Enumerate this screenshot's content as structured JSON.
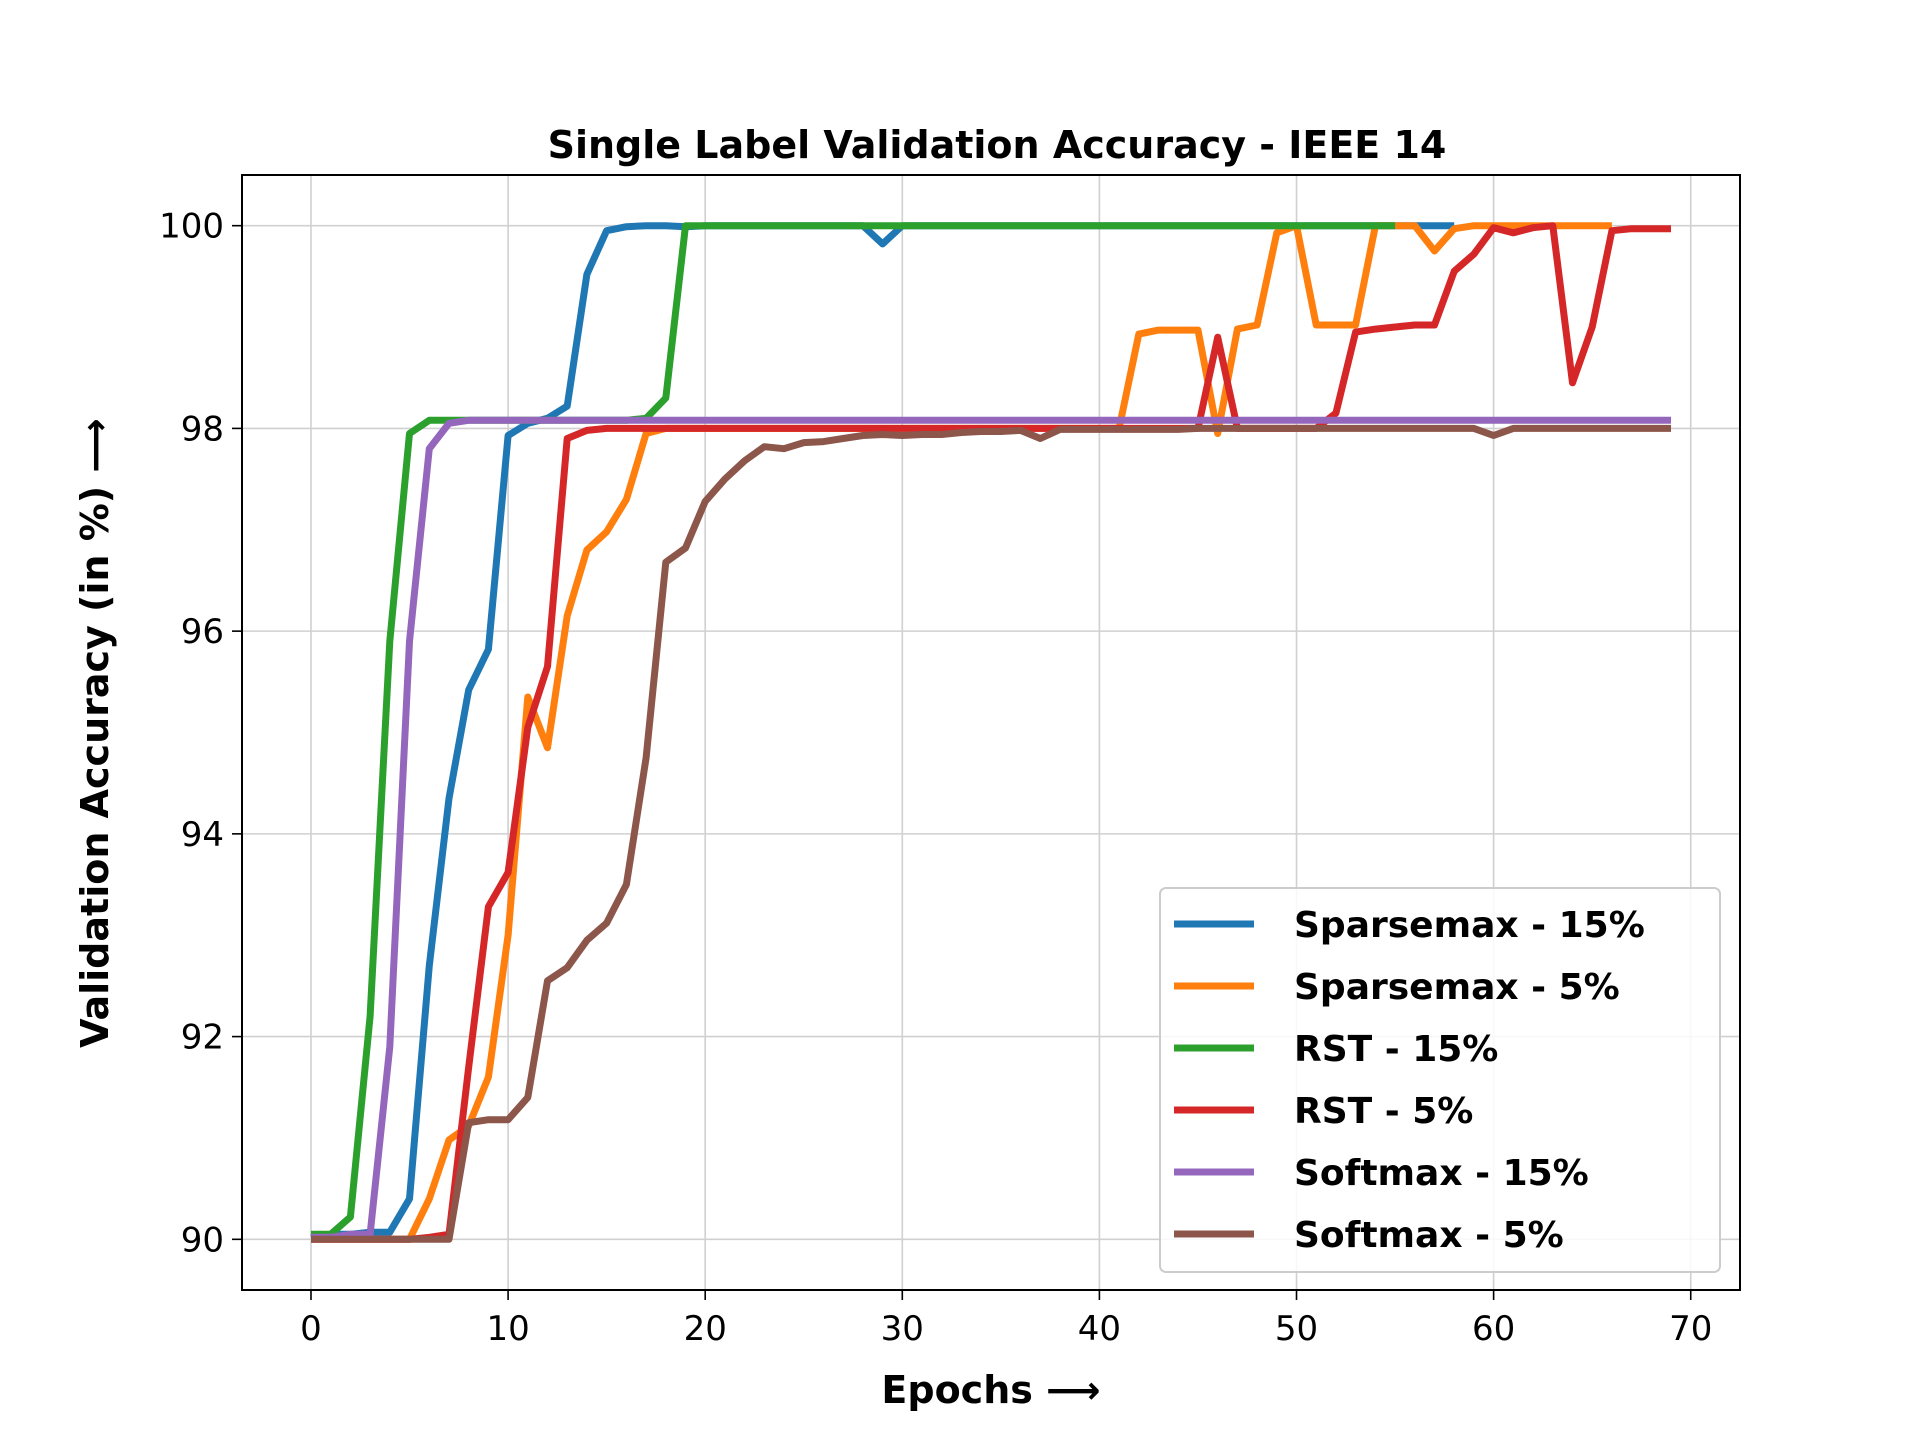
{
  "chart_data": {
    "type": "line",
    "title": "Single Label Validation Accuracy - IEEE 14",
    "xlabel": "Epochs ⟶",
    "ylabel": "Validation Accuracy (in %) ⟶",
    "xlim": [
      -3.5,
      72.5
    ],
    "ylim": [
      89.5,
      100.5
    ],
    "xticks": [
      0,
      10,
      20,
      30,
      40,
      50,
      60,
      70
    ],
    "yticks": [
      90,
      92,
      94,
      96,
      98,
      100
    ],
    "grid": true,
    "legend": "lower-right",
    "series": [
      {
        "name": "Sparsemax - 15%",
        "color": "#1f77b4",
        "values": [
          90.02,
          90.05,
          90.05,
          90.07,
          90.07,
          90.4,
          92.7,
          94.35,
          95.42,
          95.82,
          97.93,
          98.05,
          98.1,
          98.22,
          99.52,
          99.95,
          99.99,
          100.0,
          100.0,
          99.99,
          100.0,
          100.0,
          100.0,
          100.0,
          100.0,
          100.0,
          100.0,
          100.0,
          100.0,
          99.82,
          100.0,
          100.0,
          100.0,
          100.0,
          100.0,
          100.0,
          100.0,
          100.0,
          100.0,
          100.0,
          100.0,
          100.0,
          100.0,
          100.0,
          100.0,
          100.0,
          100.0,
          100.0,
          100.0,
          100.0,
          100.0,
          100.0,
          100.0,
          100.0,
          100.0,
          100.0,
          100.0,
          100.0,
          100.0
        ]
      },
      {
        "name": "Sparsemax - 5%",
        "color": "#ff7f0e",
        "values": [
          90.0,
          90.0,
          90.0,
          90.0,
          90.0,
          90.0,
          90.4,
          90.98,
          91.12,
          91.6,
          93.0,
          95.35,
          94.85,
          96.15,
          96.8,
          96.98,
          97.3,
          97.95,
          98.0,
          98.0,
          98.0,
          98.0,
          98.0,
          98.0,
          98.0,
          98.0,
          98.0,
          98.0,
          98.0,
          98.0,
          98.0,
          98.0,
          98.0,
          98.0,
          98.0,
          98.0,
          98.0,
          98.0,
          98.0,
          98.0,
          98.0,
          98.0,
          98.93,
          98.97,
          98.97,
          98.97,
          97.95,
          98.98,
          99.02,
          99.93,
          100.0,
          99.02,
          99.02,
          99.02,
          100.0,
          100.0,
          100.0,
          99.75,
          99.97,
          100.0,
          100.0,
          100.0,
          100.0,
          100.0,
          100.0,
          100.0,
          100.0
        ]
      },
      {
        "name": "RST - 15%",
        "color": "#2ca02c",
        "values": [
          90.05,
          90.05,
          90.22,
          92.2,
          95.9,
          97.95,
          98.08,
          98.08,
          98.08,
          98.08,
          98.08,
          98.08,
          98.08,
          98.08,
          98.08,
          98.08,
          98.08,
          98.1,
          98.3,
          100.0,
          100.0,
          100.0,
          100.0,
          100.0,
          100.0,
          100.0,
          100.0,
          100.0,
          100.0,
          100.0,
          100.0,
          100.0,
          100.0,
          100.0,
          100.0,
          100.0,
          100.0,
          100.0,
          100.0,
          100.0,
          100.0,
          100.0,
          100.0,
          100.0,
          100.0,
          100.0,
          100.0,
          100.0,
          100.0,
          100.0,
          100.0,
          100.0,
          100.0,
          100.0,
          100.0,
          100.0
        ]
      },
      {
        "name": "RST - 5%",
        "color": "#d62728",
        "values": [
          90.0,
          90.0,
          90.0,
          90.0,
          90.0,
          90.0,
          90.02,
          90.05,
          91.7,
          93.28,
          93.62,
          95.05,
          95.65,
          97.9,
          97.98,
          98.0,
          98.0,
          98.0,
          98.0,
          98.0,
          98.0,
          98.0,
          98.0,
          98.0,
          98.0,
          98.0,
          98.0,
          98.0,
          98.0,
          98.0,
          98.0,
          98.0,
          98.0,
          98.0,
          98.0,
          98.0,
          98.0,
          98.0,
          98.0,
          98.0,
          98.0,
          98.0,
          98.0,
          98.0,
          98.0,
          98.0,
          98.9,
          98.0,
          98.0,
          98.0,
          98.0,
          98.0,
          98.15,
          98.95,
          98.98,
          99.0,
          99.02,
          99.02,
          99.55,
          99.72,
          99.98,
          99.93,
          99.98,
          100.0,
          98.45,
          99.0,
          99.95,
          99.97,
          99.97,
          99.97
        ]
      },
      {
        "name": "Softmax - 15%",
        "color": "#9467bd",
        "values": [
          90.02,
          90.02,
          90.05,
          90.05,
          91.9,
          95.9,
          97.8,
          98.05,
          98.08,
          98.08,
          98.08,
          98.08,
          98.08,
          98.08,
          98.08,
          98.08,
          98.08,
          98.08,
          98.08,
          98.08,
          98.08,
          98.08,
          98.08,
          98.08,
          98.08,
          98.08,
          98.08,
          98.08,
          98.08,
          98.08,
          98.08,
          98.08,
          98.08,
          98.08,
          98.08,
          98.08,
          98.08,
          98.08,
          98.08,
          98.08,
          98.08,
          98.08,
          98.08,
          98.08,
          98.08,
          98.08,
          98.08,
          98.08,
          98.08,
          98.08,
          98.08,
          98.08,
          98.08,
          98.08,
          98.08,
          98.08,
          98.08,
          98.08,
          98.08,
          98.08,
          98.08,
          98.08,
          98.08,
          98.08,
          98.08,
          98.08,
          98.08,
          98.08,
          98.08,
          98.08
        ]
      },
      {
        "name": "Softmax - 5%",
        "color": "#8c564b",
        "values": [
          90.0,
          90.0,
          90.0,
          90.0,
          90.0,
          90.0,
          90.0,
          90.0,
          91.15,
          91.18,
          91.18,
          91.4,
          92.55,
          92.68,
          92.95,
          93.12,
          93.5,
          94.75,
          96.68,
          96.82,
          97.28,
          97.5,
          97.68,
          97.82,
          97.8,
          97.86,
          97.87,
          97.9,
          97.93,
          97.94,
          97.93,
          97.94,
          97.94,
          97.96,
          97.97,
          97.97,
          97.98,
          97.9,
          97.99,
          97.99,
          97.99,
          97.99,
          97.99,
          97.99,
          97.99,
          98.0,
          98.0,
          98.0,
          98.0,
          98.0,
          98.0,
          98.0,
          98.0,
          98.0,
          98.0,
          98.0,
          98.0,
          98.0,
          98.0,
          98.0,
          97.93,
          98.0,
          98.0,
          98.0,
          98.0,
          98.0,
          98.0,
          98.0,
          98.0,
          98.0
        ]
      }
    ]
  }
}
